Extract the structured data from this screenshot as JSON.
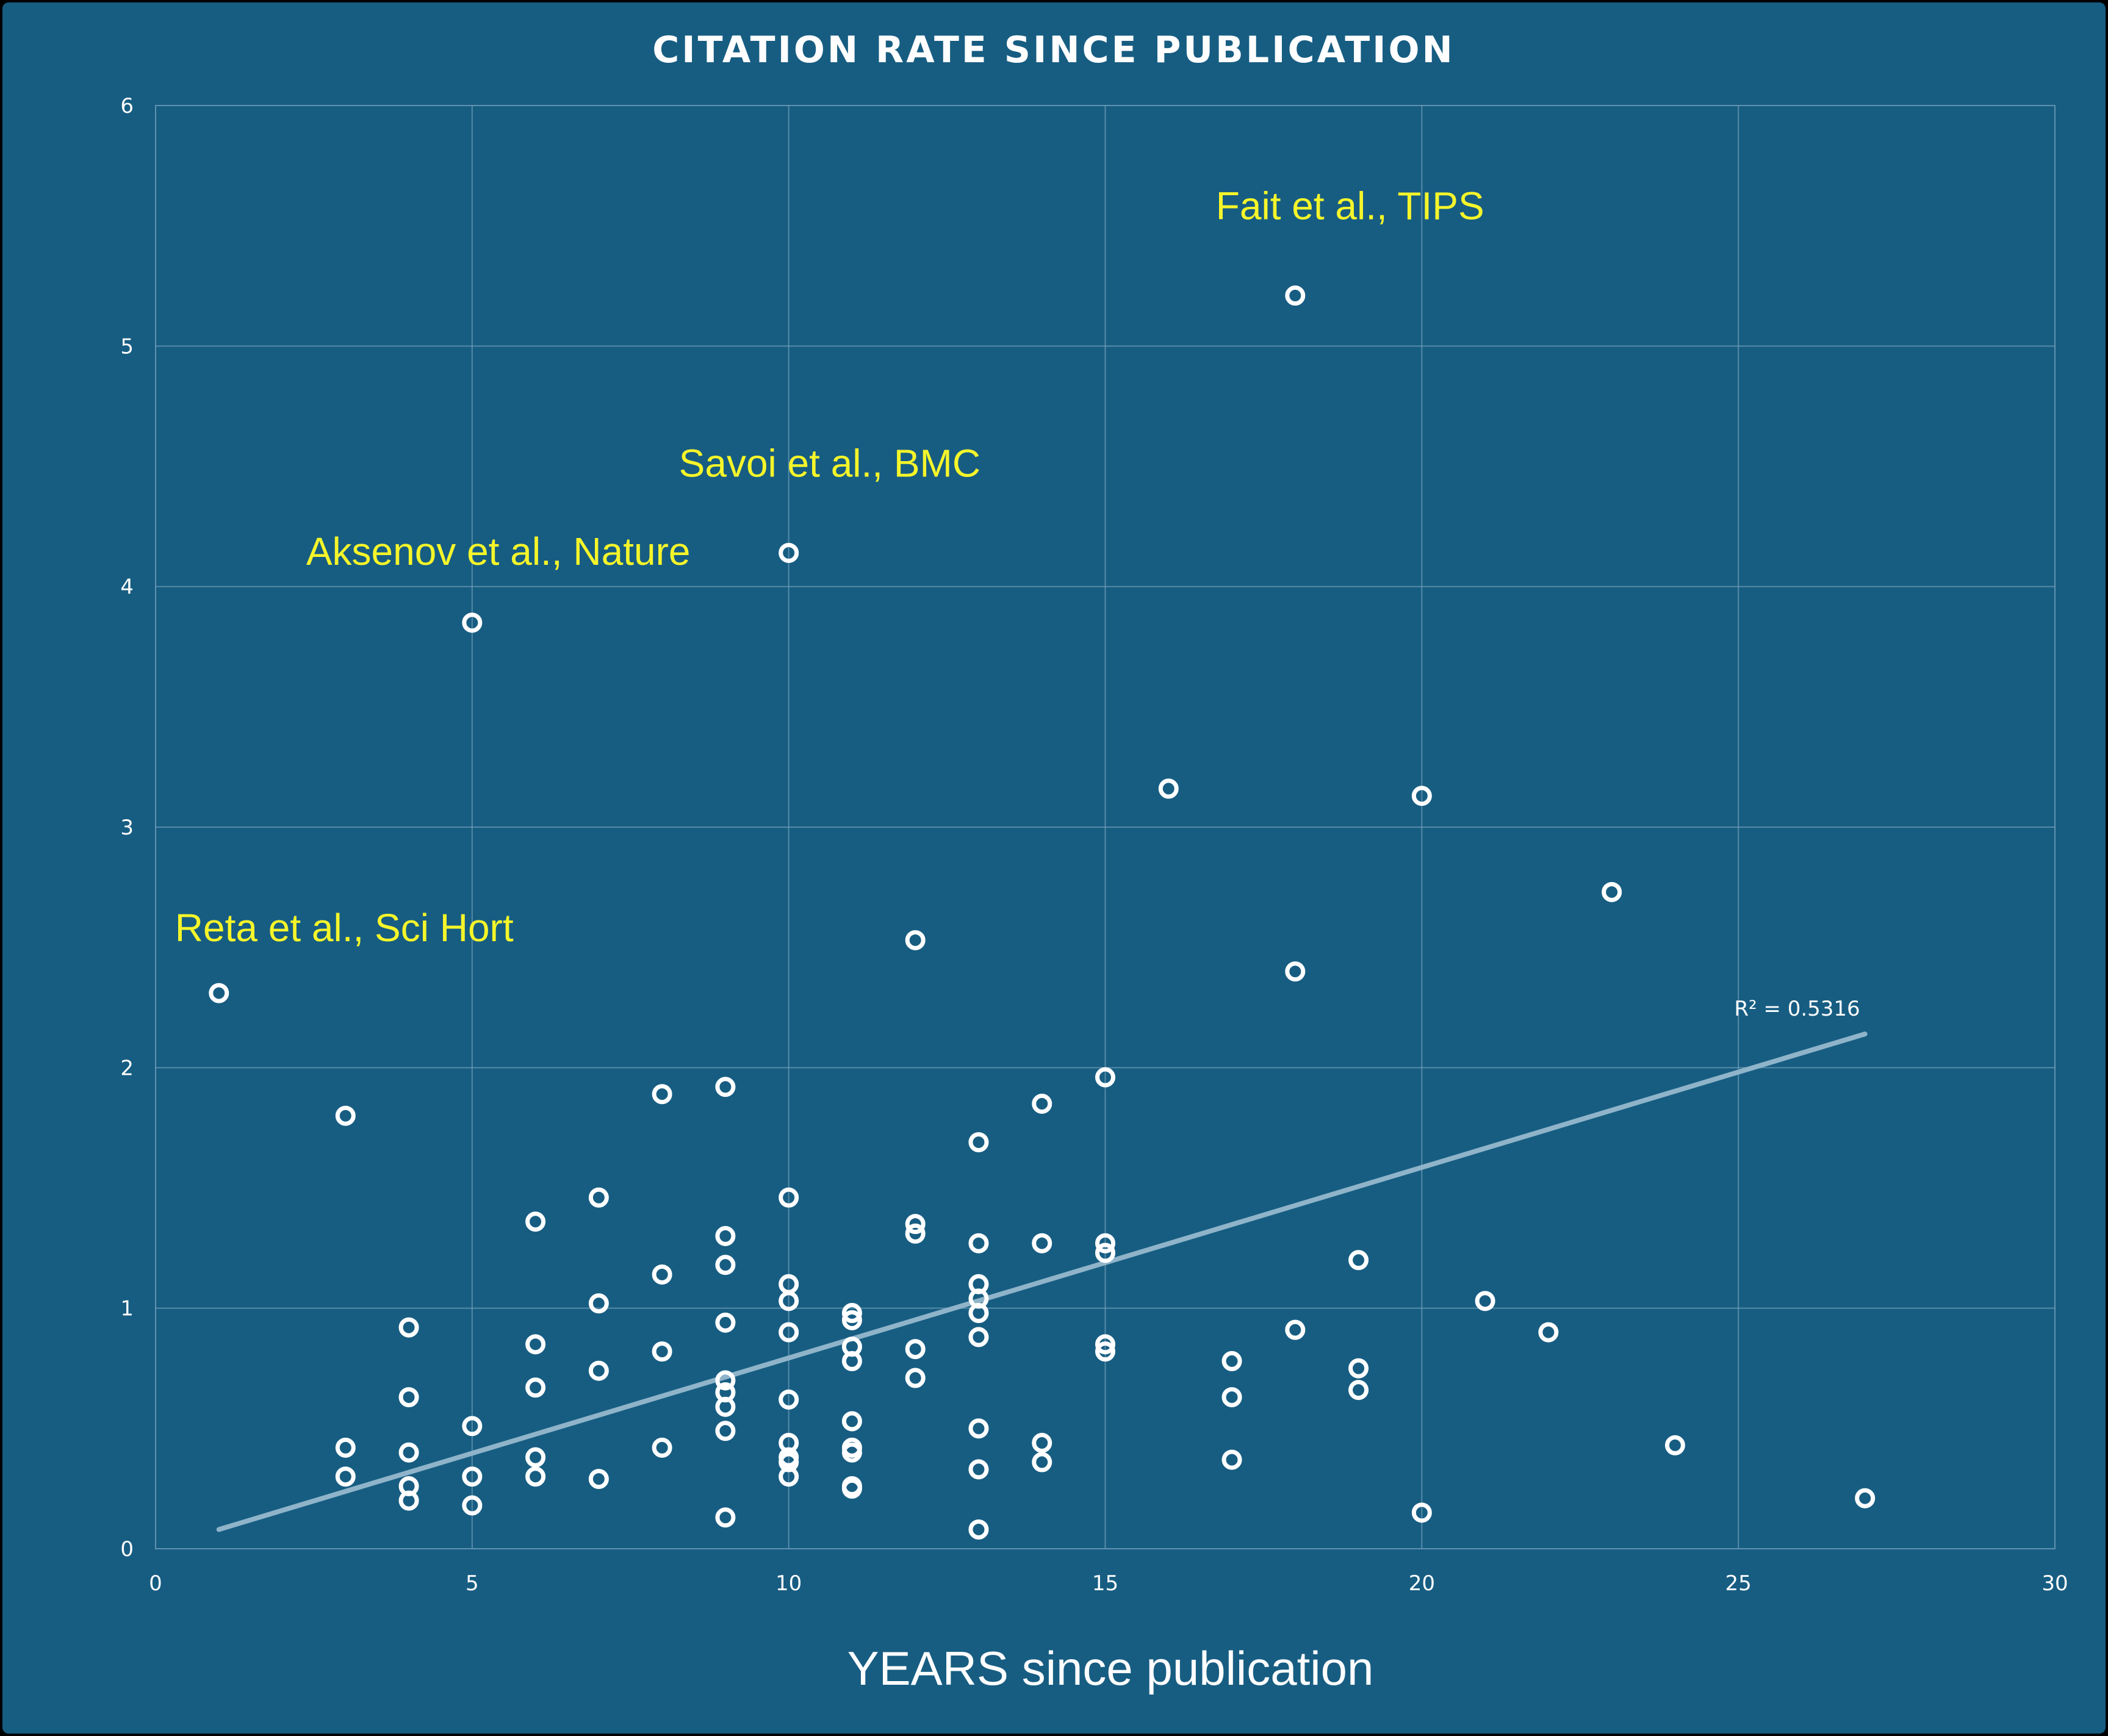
{
  "colors": {
    "background": "#175d82",
    "grid": "#7fa8c0",
    "point": "#ffffff",
    "trendline": "#8fb4c9",
    "annotation": "#f5f52a",
    "text": "#ffffff"
  },
  "chart_data": {
    "type": "scatter",
    "title": "CITATION RATE SINCE PUBLICATION",
    "xlabel": "YEARS since publication",
    "ylabel": "",
    "xlim": [
      0,
      30
    ],
    "ylim": [
      0,
      6
    ],
    "x_ticks": [
      0,
      5,
      10,
      15,
      20,
      25,
      30
    ],
    "y_ticks": [
      0,
      1,
      2,
      3,
      4,
      5,
      6
    ],
    "grid": true,
    "marker": "hollow-circle",
    "series": [
      {
        "points": [
          [
            1,
            2.31
          ],
          [
            3,
            1.8
          ],
          [
            3,
            0.42
          ],
          [
            3,
            0.3
          ],
          [
            4,
            0.92
          ],
          [
            4,
            0.63
          ],
          [
            4,
            0.4
          ],
          [
            4,
            0.26
          ],
          [
            4,
            0.2
          ],
          [
            5,
            3.85
          ],
          [
            5,
            0.51
          ],
          [
            5,
            0.3
          ],
          [
            5,
            0.18
          ],
          [
            6,
            1.36
          ],
          [
            6,
            0.85
          ],
          [
            6,
            0.67
          ],
          [
            6,
            0.38
          ],
          [
            6,
            0.3
          ],
          [
            7,
            1.46
          ],
          [
            7,
            1.02
          ],
          [
            7,
            0.74
          ],
          [
            7,
            0.29
          ],
          [
            8,
            1.89
          ],
          [
            8,
            1.14
          ],
          [
            8,
            0.82
          ],
          [
            8,
            0.42
          ],
          [
            9,
            1.92
          ],
          [
            9,
            1.3
          ],
          [
            9,
            1.18
          ],
          [
            9,
            0.94
          ],
          [
            9,
            0.7
          ],
          [
            9,
            0.65
          ],
          [
            9,
            0.59
          ],
          [
            9,
            0.49
          ],
          [
            9,
            0.13
          ],
          [
            10,
            4.14
          ],
          [
            10,
            1.46
          ],
          [
            10,
            1.1
          ],
          [
            10,
            1.03
          ],
          [
            10,
            0.9
          ],
          [
            10,
            0.62
          ],
          [
            10,
            0.44
          ],
          [
            10,
            0.38
          ],
          [
            10,
            0.36
          ],
          [
            10,
            0.3
          ],
          [
            11,
            0.98
          ],
          [
            11,
            0.95
          ],
          [
            11,
            0.84
          ],
          [
            11,
            0.78
          ],
          [
            11,
            0.53
          ],
          [
            11,
            0.42
          ],
          [
            11,
            0.4
          ],
          [
            11,
            0.26
          ],
          [
            11,
            0.25
          ],
          [
            12,
            2.53
          ],
          [
            12,
            1.35
          ],
          [
            12,
            1.31
          ],
          [
            12,
            0.83
          ],
          [
            12,
            0.71
          ],
          [
            13,
            1.69
          ],
          [
            13,
            1.27
          ],
          [
            13,
            1.1
          ],
          [
            13,
            1.04
          ],
          [
            13,
            0.98
          ],
          [
            13,
            0.88
          ],
          [
            13,
            0.5
          ],
          [
            13,
            0.33
          ],
          [
            13,
            0.08
          ],
          [
            14,
            1.85
          ],
          [
            14,
            1.27
          ],
          [
            14,
            0.44
          ],
          [
            14,
            0.36
          ],
          [
            15,
            1.96
          ],
          [
            15,
            1.27
          ],
          [
            15,
            1.23
          ],
          [
            15,
            0.85
          ],
          [
            15,
            0.82
          ],
          [
            16,
            3.16
          ],
          [
            17,
            0.78
          ],
          [
            17,
            0.63
          ],
          [
            17,
            0.37
          ],
          [
            18,
            5.21
          ],
          [
            18,
            2.4
          ],
          [
            18,
            0.91
          ],
          [
            19,
            1.2
          ],
          [
            19,
            0.75
          ],
          [
            19,
            0.66
          ],
          [
            20,
            3.13
          ],
          [
            20,
            0.15
          ],
          [
            21,
            1.03
          ],
          [
            22,
            0.9
          ],
          [
            23,
            2.73
          ],
          [
            24,
            0.43
          ],
          [
            27,
            0.21
          ]
        ]
      }
    ],
    "trendline": {
      "type": "linear",
      "x": [
        1,
        27
      ],
      "y": [
        0.08,
        2.14
      ],
      "label": "R² = 0.5316"
    },
    "annotations": [
      {
        "text": "Fait et al., TIPS",
        "x": 18,
        "y": 5.21
      },
      {
        "text": "Savoi et al., BMC",
        "x": 10,
        "y": 4.14
      },
      {
        "text": "Aksenov et al., Nature",
        "x": 5,
        "y": 3.85
      },
      {
        "text": "Reta et al., Sci Hort",
        "x": 1,
        "y": 2.31
      }
    ]
  }
}
